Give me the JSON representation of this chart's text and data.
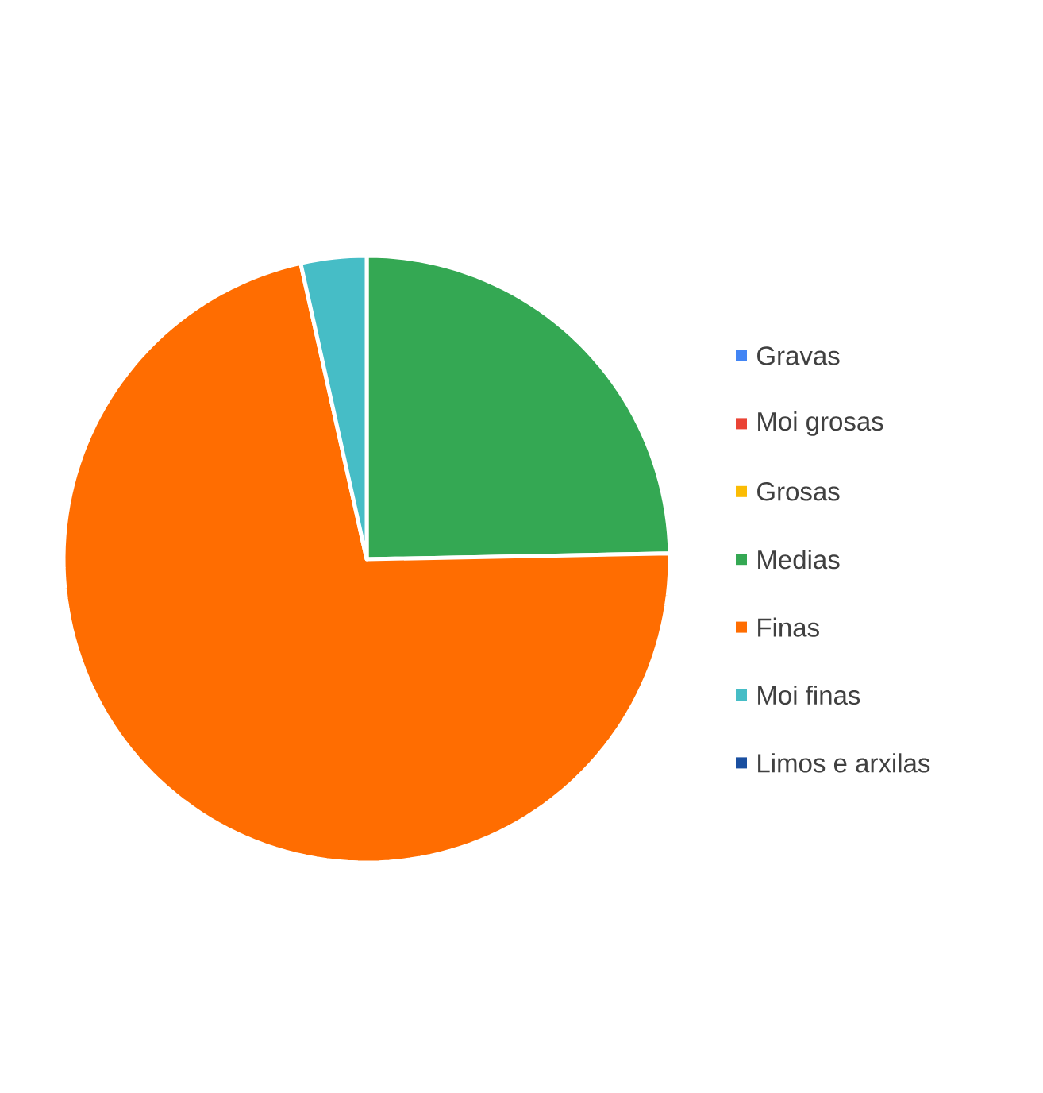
{
  "chart_data": {
    "type": "pie",
    "categories": [
      "Gravas",
      "Moi grosas",
      "Grosas",
      "Medias",
      "Finas",
      "Moi finas",
      "Limos e arxilas"
    ],
    "values": [
      0,
      0,
      0,
      24.7,
      71.8,
      3.5,
      0
    ],
    "colors": [
      "#4285f4",
      "#ea4335",
      "#fbbc04",
      "#34a853",
      "#ff6d01",
      "#46bdc6",
      "#1a4fa0"
    ],
    "legend": "right"
  }
}
